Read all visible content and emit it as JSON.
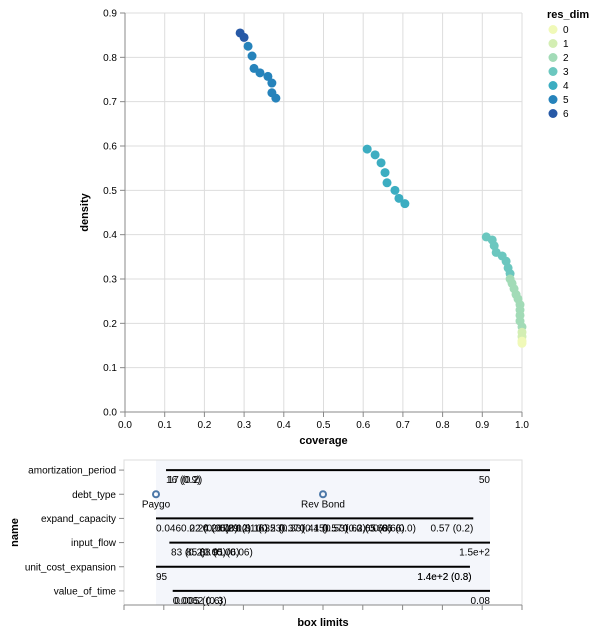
{
  "chart_data": [
    {
      "type": "scatter",
      "title": "",
      "xlabel": "coverage",
      "ylabel": "density",
      "xlim": [
        0,
        1
      ],
      "ylim": [
        0,
        0.9
      ],
      "x_ticks": [
        "0.0",
        "0.1",
        "0.2",
        "0.3",
        "0.4",
        "0.5",
        "0.6",
        "0.7",
        "0.8",
        "0.9",
        "1.0"
      ],
      "y_ticks": [
        "0.0",
        "0.1",
        "0.2",
        "0.3",
        "0.4",
        "0.5",
        "0.6",
        "0.7",
        "0.8",
        "0.9"
      ],
      "grid": true,
      "legend": {
        "title": "res_dim",
        "placement": "right",
        "entries": [
          {
            "label": "0",
            "color": "#f0f9b8"
          },
          {
            "label": "1",
            "color": "#d3eeb3"
          },
          {
            "label": "2",
            "color": "#a2dbb7"
          },
          {
            "label": "3",
            "color": "#6bc7bf"
          },
          {
            "label": "4",
            "color": "#3cadc1"
          },
          {
            "label": "5",
            "color": "#2683bb"
          },
          {
            "label": "6",
            "color": "#2759a6"
          }
        ]
      },
      "points": [
        {
          "x": 0.29,
          "y": 0.855,
          "res_dim": 6
        },
        {
          "x": 0.3,
          "y": 0.845,
          "res_dim": 6
        },
        {
          "x": 0.31,
          "y": 0.825,
          "res_dim": 5
        },
        {
          "x": 0.32,
          "y": 0.803,
          "res_dim": 5
        },
        {
          "x": 0.325,
          "y": 0.775,
          "res_dim": 5
        },
        {
          "x": 0.34,
          "y": 0.765,
          "res_dim": 5
        },
        {
          "x": 0.36,
          "y": 0.757,
          "res_dim": 5
        },
        {
          "x": 0.37,
          "y": 0.742,
          "res_dim": 5
        },
        {
          "x": 0.37,
          "y": 0.72,
          "res_dim": 5
        },
        {
          "x": 0.38,
          "y": 0.708,
          "res_dim": 5
        },
        {
          "x": 0.61,
          "y": 0.593,
          "res_dim": 4
        },
        {
          "x": 0.63,
          "y": 0.58,
          "res_dim": 4
        },
        {
          "x": 0.645,
          "y": 0.562,
          "res_dim": 4
        },
        {
          "x": 0.655,
          "y": 0.54,
          "res_dim": 4
        },
        {
          "x": 0.66,
          "y": 0.517,
          "res_dim": 4
        },
        {
          "x": 0.68,
          "y": 0.5,
          "res_dim": 4
        },
        {
          "x": 0.69,
          "y": 0.482,
          "res_dim": 4
        },
        {
          "x": 0.705,
          "y": 0.47,
          "res_dim": 4
        },
        {
          "x": 0.91,
          "y": 0.395,
          "res_dim": 3
        },
        {
          "x": 0.925,
          "y": 0.388,
          "res_dim": 3
        },
        {
          "x": 0.93,
          "y": 0.375,
          "res_dim": 3
        },
        {
          "x": 0.935,
          "y": 0.36,
          "res_dim": 3
        },
        {
          "x": 0.95,
          "y": 0.352,
          "res_dim": 3
        },
        {
          "x": 0.96,
          "y": 0.34,
          "res_dim": 3
        },
        {
          "x": 0.965,
          "y": 0.325,
          "res_dim": 3
        },
        {
          "x": 0.97,
          "y": 0.312,
          "res_dim": 3
        },
        {
          "x": 0.97,
          "y": 0.3,
          "res_dim": 2
        },
        {
          "x": 0.975,
          "y": 0.29,
          "res_dim": 2
        },
        {
          "x": 0.98,
          "y": 0.278,
          "res_dim": 2
        },
        {
          "x": 0.985,
          "y": 0.265,
          "res_dim": 2
        },
        {
          "x": 0.99,
          "y": 0.255,
          "res_dim": 2
        },
        {
          "x": 0.995,
          "y": 0.242,
          "res_dim": 2
        },
        {
          "x": 0.995,
          "y": 0.23,
          "res_dim": 2
        },
        {
          "x": 0.995,
          "y": 0.218,
          "res_dim": 2
        },
        {
          "x": 0.995,
          "y": 0.205,
          "res_dim": 2
        },
        {
          "x": 1.0,
          "y": 0.192,
          "res_dim": 2
        },
        {
          "x": 1.0,
          "y": 0.18,
          "res_dim": 1
        },
        {
          "x": 1.0,
          "y": 0.17,
          "res_dim": 1
        },
        {
          "x": 1.0,
          "y": 0.16,
          "res_dim": 0
        },
        {
          "x": 1.0,
          "y": 0.155,
          "res_dim": 0
        }
      ]
    },
    {
      "type": "box_limits",
      "xlabel": "box limits",
      "ylabel": "name",
      "rows": [
        {
          "name": "amortization_period",
          "line": [
            0.03,
            1.0
          ],
          "labels": [
            {
              "text": "16 (0.9)",
              "pos": 0.03,
              "side": "below",
              "anchor": "start"
            },
            {
              "text": "17 (0.2)",
              "pos": 0.035,
              "side": "below",
              "anchor": "start"
            },
            {
              "text": "50",
              "pos": 1.0,
              "side": "below",
              "anchor": "end"
            }
          ]
        },
        {
          "name": "debt_type",
          "points": [
            0.0,
            0.5
          ],
          "labels": [
            {
              "text": "Paygo",
              "pos": 0.0,
              "side": "below",
              "anchor": "middle"
            },
            {
              "text": "Rev Bond",
              "pos": 0.5,
              "side": "below",
              "anchor": "middle"
            }
          ]
        },
        {
          "name": "expand_capacity",
          "line": [
            0.0,
            0.95
          ],
          "labels": [
            {
              "text": "0.046",
              "pos": 0.0,
              "side": "below",
              "anchor": "start"
            },
            {
              "text": "0.22 (0.05)",
              "pos": 0.075,
              "side": "below",
              "anchor": "start"
            },
            {
              "text": "0.24 (0.08)",
              "pos": 0.1,
              "side": "below",
              "anchor": "start"
            },
            {
              "text": "0.26 (0.12)",
              "pos": 0.14,
              "side": "below",
              "anchor": "start"
            },
            {
              "text": "0.29 (0.16)",
              "pos": 0.19,
              "side": "below",
              "anchor": "start"
            },
            {
              "text": "0.31 (0.23)",
              "pos": 0.24,
              "side": "below",
              "anchor": "start"
            },
            {
              "text": "0.35 (0.33)",
              "pos": 0.3,
              "side": "below",
              "anchor": "start"
            },
            {
              "text": "0.37 (0.45)",
              "pos": 0.37,
              "side": "below",
              "anchor": "start"
            },
            {
              "text": "0.41 (0.53)",
              "pos": 0.43,
              "side": "below",
              "anchor": "start"
            },
            {
              "text": "0.57 (0.2)",
              "pos": 0.5,
              "side": "below",
              "anchor": "start"
            },
            {
              "text": "0.63 (0.68)",
              "pos": 0.56,
              "side": "below",
              "anchor": "start"
            },
            {
              "text": "0.65 (0.66)",
              "pos": 0.6,
              "side": "below",
              "anchor": "start"
            },
            {
              "text": "0.66 (0.0)",
              "pos": 0.65,
              "side": "below",
              "anchor": "start"
            },
            {
              "text": "0.57 (0.2)",
              "pos": 0.95,
              "side": "below",
              "anchor": "end"
            }
          ]
        },
        {
          "name": "input_flow",
          "line": [
            0.04,
            1.0
          ],
          "labels": [
            {
              "text": "83 (0.2)",
              "pos": 0.045,
              "side": "below",
              "anchor": "start"
            },
            {
              "text": "85 (0.05)",
              "pos": 0.09,
              "side": "below",
              "anchor": "start"
            },
            {
              "text": "88 (0.06)",
              "pos": 0.13,
              "side": "below",
              "anchor": "start"
            },
            {
              "text": "91 (0.06)",
              "pos": 0.17,
              "side": "below",
              "anchor": "start"
            },
            {
              "text": "1.5e+2",
              "pos": 1.0,
              "side": "below",
              "anchor": "end"
            }
          ]
        },
        {
          "name": "unit_cost_expansion",
          "line": [
            0.0,
            0.94
          ],
          "labels": [
            {
              "text": "95",
              "pos": 0.0,
              "side": "below",
              "anchor": "start"
            },
            {
              "text": "1.4e+2 (0.8)",
              "pos": 0.945,
              "side": "below",
              "anchor": "end"
            },
            {
              "text": "1.4e+2 (0.3)",
              "pos": 0.945,
              "side": "below",
              "anchor": "end"
            }
          ]
        },
        {
          "name": "value_of_time",
          "line": [
            0.05,
            1.0
          ],
          "labels": [
            {
              "text": "0.0062 (0.3)",
              "pos": 0.05,
              "side": "below",
              "anchor": "start"
            },
            {
              "text": "0.005 (0.6)",
              "pos": 0.055,
              "side": "below",
              "anchor": "start"
            },
            {
              "text": "0.08",
              "pos": 1.0,
              "side": "below",
              "anchor": "end"
            }
          ]
        }
      ]
    }
  ]
}
